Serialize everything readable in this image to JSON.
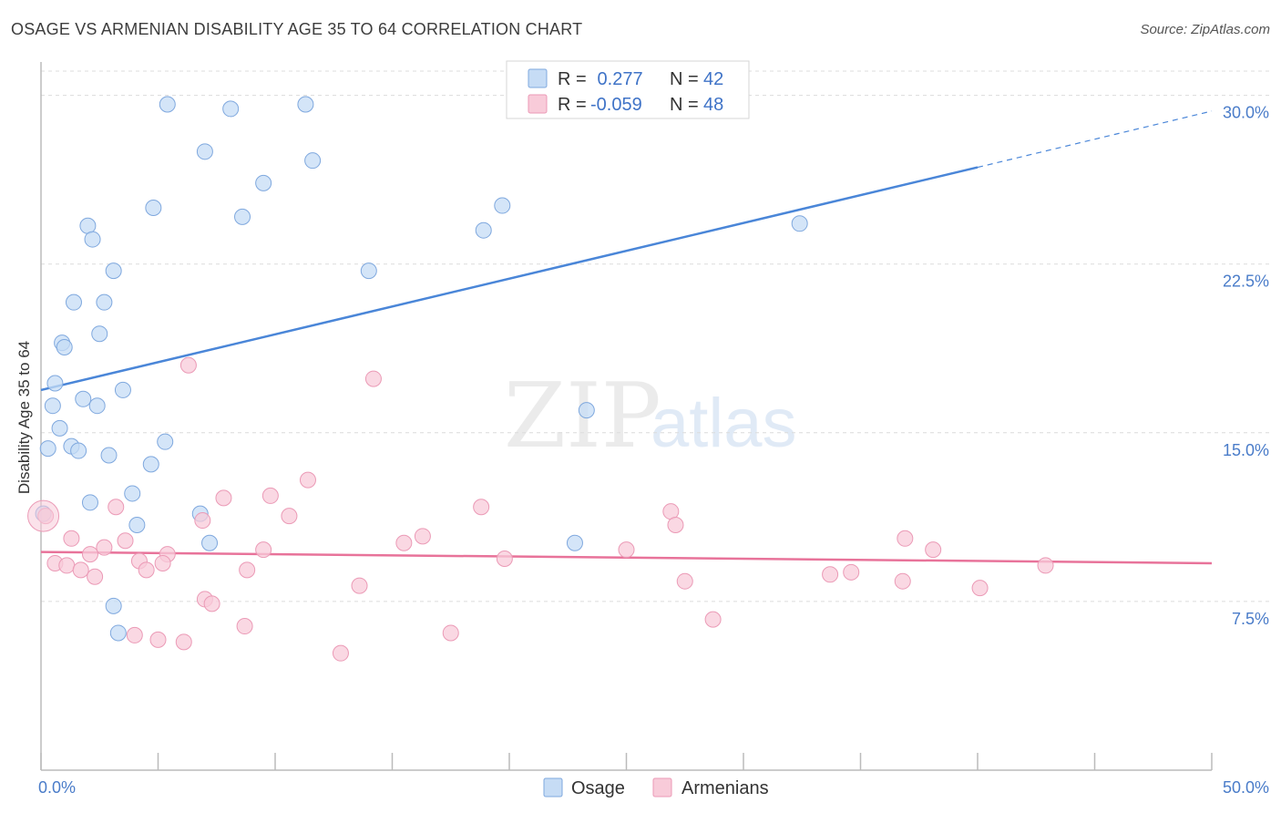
{
  "title": "OSAGE VS ARMENIAN DISABILITY AGE 35 TO 64 CORRELATION CHART",
  "source": "Source: ZipAtlas.com",
  "watermark": {
    "zip": "ZIP",
    "atlas": "atlas"
  },
  "colors": {
    "osage": "#4a86d8",
    "osage_fill": "#c6dcf5",
    "armenians": "#e8739a",
    "armenians_fill": "#f8cbd9",
    "tick_text": "#4a7cc9",
    "grid": "#dcdcdc"
  },
  "legend_top": {
    "rows": [
      {
        "r_label": "R =",
        "r_value": " 0.277",
        "n_label": "N =",
        "n_value": "42"
      },
      {
        "r_label": "R =",
        "r_value": "-0.059",
        "n_label": "N =",
        "n_value": "48"
      }
    ]
  },
  "legend_bottom": {
    "items": [
      "Osage",
      "Armenians"
    ]
  },
  "chart_data": {
    "type": "scatter",
    "title": "OSAGE VS ARMENIAN DISABILITY AGE 35 TO 64 CORRELATION CHART",
    "ylabel": "Disability Age 35 to 64",
    "xlabel": "",
    "xlim": [
      0,
      50
    ],
    "ylim": [
      0,
      31.2
    ],
    "x_tick_labels": [
      "0.0%",
      "50.0%"
    ],
    "y_ticks": [
      7.5,
      15.0,
      22.5,
      30.0
    ],
    "y_tick_labels": [
      "7.5%",
      "15.0%",
      "22.5%",
      "30.0%"
    ],
    "grid": true,
    "legend_placement": "top-center and bottom",
    "series": [
      {
        "name": "Osage",
        "r": 0.277,
        "n": 42,
        "trend": {
          "x0": 0,
          "y0": 16.9,
          "x1": 40,
          "y1": 26.8,
          "dashed_to_x": 50,
          "dashed_to_y": 29.3
        },
        "points": [
          [
            5.4,
            29.6
          ],
          [
            8.1,
            29.4
          ],
          [
            11.3,
            29.6
          ],
          [
            7.0,
            27.5
          ],
          [
            11.6,
            27.1
          ],
          [
            9.5,
            26.1
          ],
          [
            4.8,
            25.0
          ],
          [
            8.6,
            24.6
          ],
          [
            2.0,
            24.2
          ],
          [
            2.2,
            23.6
          ],
          [
            18.9,
            24.0
          ],
          [
            19.7,
            25.1
          ],
          [
            32.4,
            24.3
          ],
          [
            3.1,
            22.2
          ],
          [
            14.0,
            22.2
          ],
          [
            1.4,
            20.8
          ],
          [
            2.7,
            20.8
          ],
          [
            2.5,
            19.4
          ],
          [
            0.9,
            19.0
          ],
          [
            1.0,
            18.8
          ],
          [
            0.6,
            17.2
          ],
          [
            1.8,
            16.5
          ],
          [
            2.4,
            16.2
          ],
          [
            3.5,
            16.9
          ],
          [
            0.5,
            16.2
          ],
          [
            0.8,
            15.2
          ],
          [
            5.3,
            14.6
          ],
          [
            0.3,
            14.3
          ],
          [
            1.3,
            14.4
          ],
          [
            1.6,
            14.2
          ],
          [
            2.9,
            14.0
          ],
          [
            4.7,
            13.6
          ],
          [
            23.3,
            16.0
          ],
          [
            3.9,
            12.3
          ],
          [
            2.1,
            11.9
          ],
          [
            6.8,
            11.4
          ],
          [
            4.1,
            10.9
          ],
          [
            7.2,
            10.1
          ],
          [
            22.8,
            10.1
          ],
          [
            3.1,
            7.3
          ],
          [
            3.3,
            6.1
          ],
          [
            0.1,
            11.4
          ]
        ]
      },
      {
        "name": "Armenians",
        "r": -0.059,
        "n": 48,
        "trend": {
          "x0": 0,
          "y0": 9.7,
          "x1": 50,
          "y1": 9.2
        },
        "points": [
          [
            6.3,
            18.0
          ],
          [
            14.2,
            17.4
          ],
          [
            11.4,
            12.9
          ],
          [
            9.8,
            12.2
          ],
          [
            7.8,
            12.1
          ],
          [
            3.2,
            11.7
          ],
          [
            18.8,
            11.7
          ],
          [
            26.9,
            11.5
          ],
          [
            10.6,
            11.3
          ],
          [
            6.9,
            11.1
          ],
          [
            27.1,
            10.9
          ],
          [
            1.3,
            10.3
          ],
          [
            3.6,
            10.2
          ],
          [
            16.3,
            10.4
          ],
          [
            36.9,
            10.3
          ],
          [
            15.5,
            10.1
          ],
          [
            2.7,
            9.9
          ],
          [
            9.5,
            9.8
          ],
          [
            25.0,
            9.8
          ],
          [
            38.1,
            9.8
          ],
          [
            5.4,
            9.6
          ],
          [
            2.1,
            9.6
          ],
          [
            4.2,
            9.3
          ],
          [
            5.2,
            9.2
          ],
          [
            19.8,
            9.4
          ],
          [
            0.6,
            9.2
          ],
          [
            1.1,
            9.1
          ],
          [
            1.7,
            8.9
          ],
          [
            42.9,
            9.1
          ],
          [
            4.5,
            8.9
          ],
          [
            8.8,
            8.9
          ],
          [
            2.3,
            8.6
          ],
          [
            33.7,
            8.7
          ],
          [
            34.6,
            8.8
          ],
          [
            27.5,
            8.4
          ],
          [
            36.8,
            8.4
          ],
          [
            13.6,
            8.2
          ],
          [
            40.1,
            8.1
          ],
          [
            7.0,
            7.6
          ],
          [
            7.3,
            7.4
          ],
          [
            28.7,
            6.7
          ],
          [
            8.7,
            6.4
          ],
          [
            4.0,
            6.0
          ],
          [
            5.0,
            5.8
          ],
          [
            6.1,
            5.7
          ],
          [
            17.5,
            6.1
          ],
          [
            12.8,
            5.2
          ],
          [
            0.2,
            11.3
          ]
        ]
      }
    ]
  }
}
